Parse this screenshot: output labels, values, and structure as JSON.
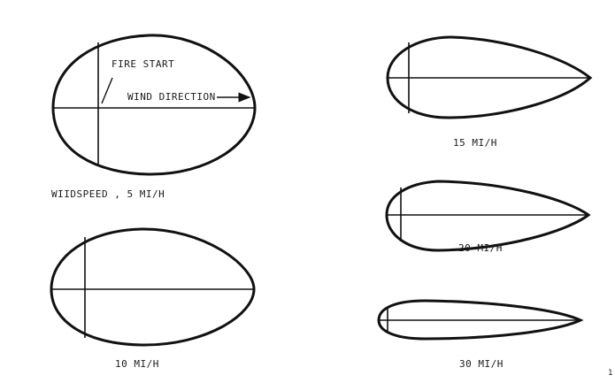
{
  "labels": {
    "fire_start": "FIRE START",
    "wind_direction": "WIND DIRECTION",
    "windspeed_5": "WIIDSPEED , 5 MI/H",
    "windspeed_10": "10 MI/H",
    "windspeed_15": "15 MI/H",
    "windspeed_20": "20 MI/H",
    "windspeed_30": "30 MI/H",
    "page_mark": "1"
  },
  "colors": {
    "ink": "#111111",
    "background": "#ffffff"
  }
}
